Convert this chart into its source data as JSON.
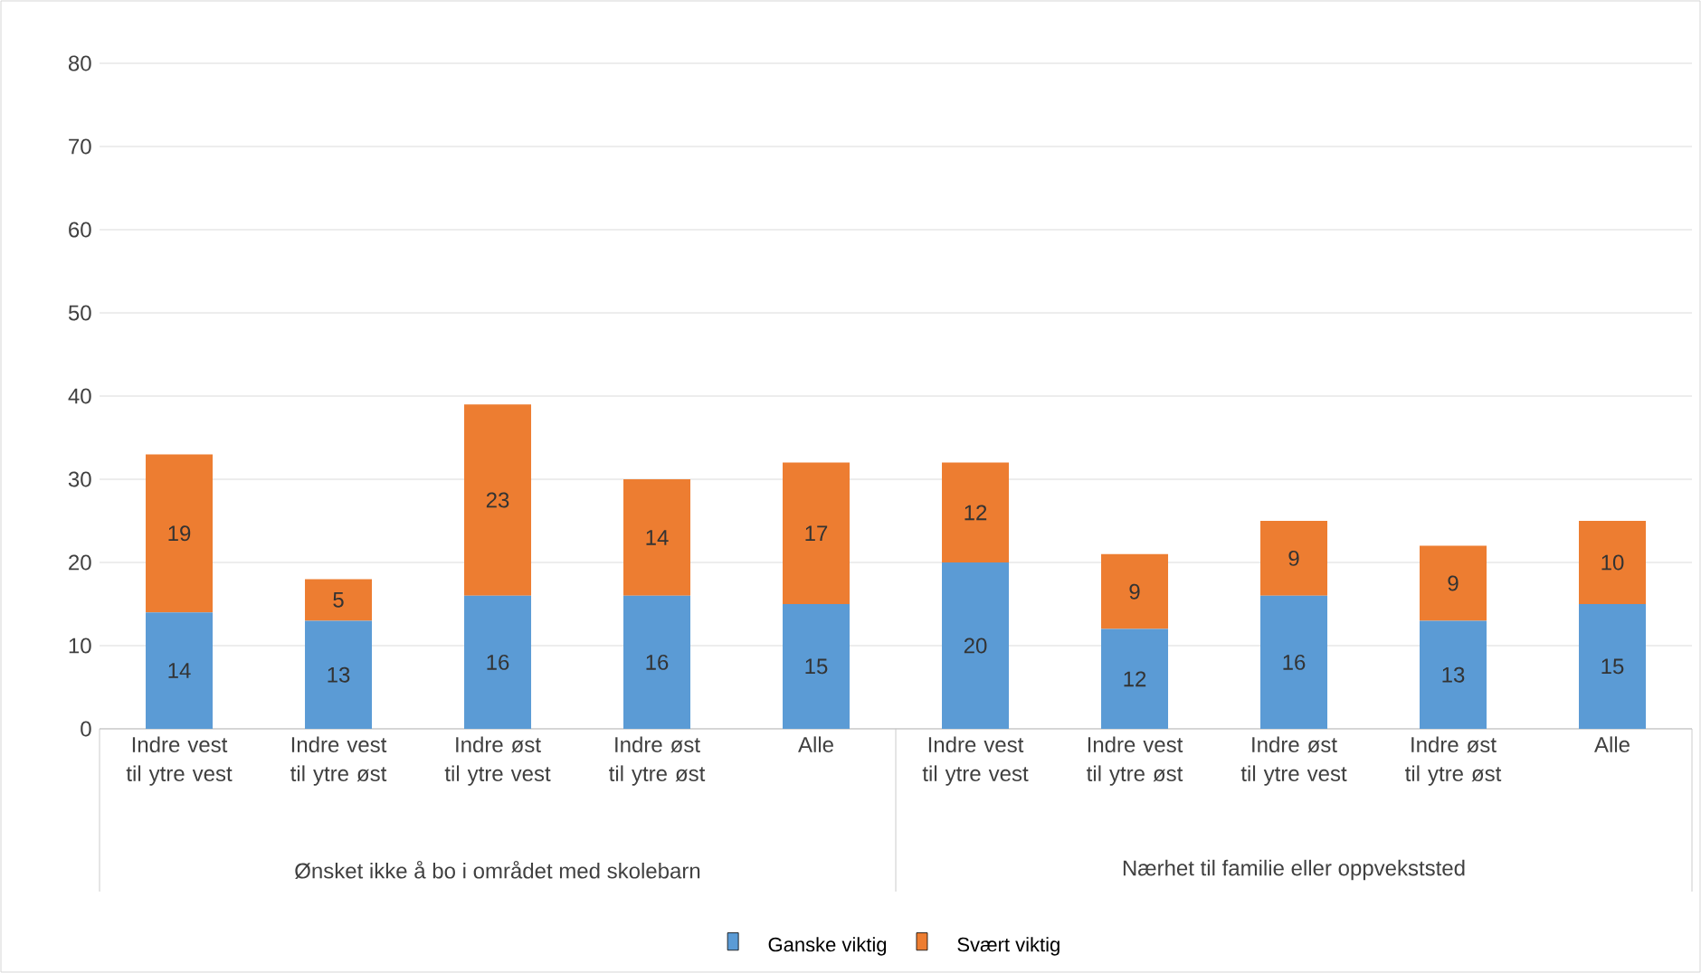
{
  "chart_data": {
    "type": "bar",
    "stacked": true,
    "categories": [
      "Indre vest til ytre vest",
      "Indre vest til ytre øst",
      "Indre øst til ytre vest",
      "Indre øst til ytre øst",
      "Alle",
      "Indre vest til ytre vest",
      "Indre vest til ytre øst",
      "Indre øst til ytre vest",
      "Indre øst til ytre øst",
      "Alle"
    ],
    "series": [
      {
        "name": "Ganske viktig",
        "color": "#5b9bd5",
        "values": [
          14,
          13,
          16,
          16,
          15,
          20,
          12,
          16,
          13,
          15
        ]
      },
      {
        "name": "Svært viktig",
        "color": "#ed7d31",
        "values": [
          19,
          5,
          23,
          14,
          17,
          12,
          9,
          9,
          9,
          10
        ]
      }
    ],
    "annotations": [
      "Ønsket ikke å bo i området med skolebarn",
      "Nærhet til familie eller oppvekststed"
    ],
    "ylim": [
      0,
      80
    ],
    "yticks": [
      0,
      10,
      20,
      30,
      40,
      50,
      60,
      70,
      80
    ],
    "grid": "y",
    "legend": "bottom",
    "data_labels": true
  }
}
